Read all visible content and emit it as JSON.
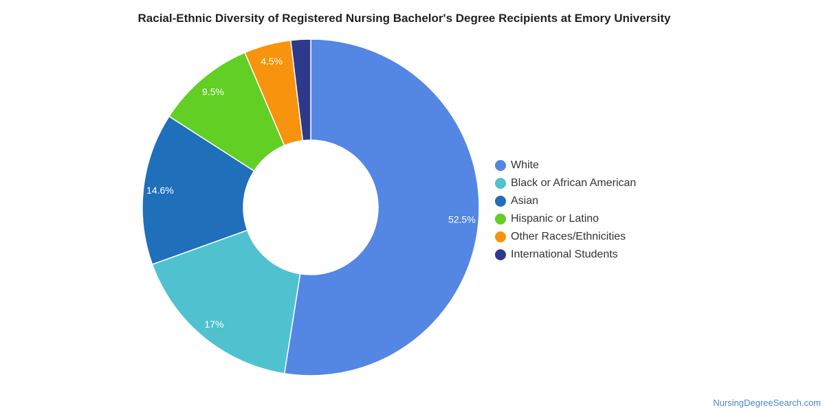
{
  "chart_data": {
    "type": "pie",
    "title": "Racial-Ethnic Diversity of Registered Nursing Bachelor's Degree Recipients at Emory University",
    "slices": [
      {
        "name": "White",
        "value": 52.5,
        "label": "52.5%",
        "color": "#5486e3"
      },
      {
        "name": "Black or African American",
        "value": 17.0,
        "label": "17%",
        "color": "#4fc1cf"
      },
      {
        "name": "Asian",
        "value": 14.6,
        "label": "14.6%",
        "color": "#1f6fba"
      },
      {
        "name": "Hispanic or Latino",
        "value": 9.5,
        "label": "9.5%",
        "color": "#61cf24"
      },
      {
        "name": "Other Races/Ethnicities",
        "value": 4.5,
        "label": "4.5%",
        "color": "#f7930c"
      },
      {
        "name": "International Students",
        "value": 1.9,
        "label": "",
        "color": "#2d3a8c"
      }
    ],
    "donut": true,
    "legend_position": "right"
  },
  "footer": {
    "source": "NursingDegreeSearch.com"
  }
}
